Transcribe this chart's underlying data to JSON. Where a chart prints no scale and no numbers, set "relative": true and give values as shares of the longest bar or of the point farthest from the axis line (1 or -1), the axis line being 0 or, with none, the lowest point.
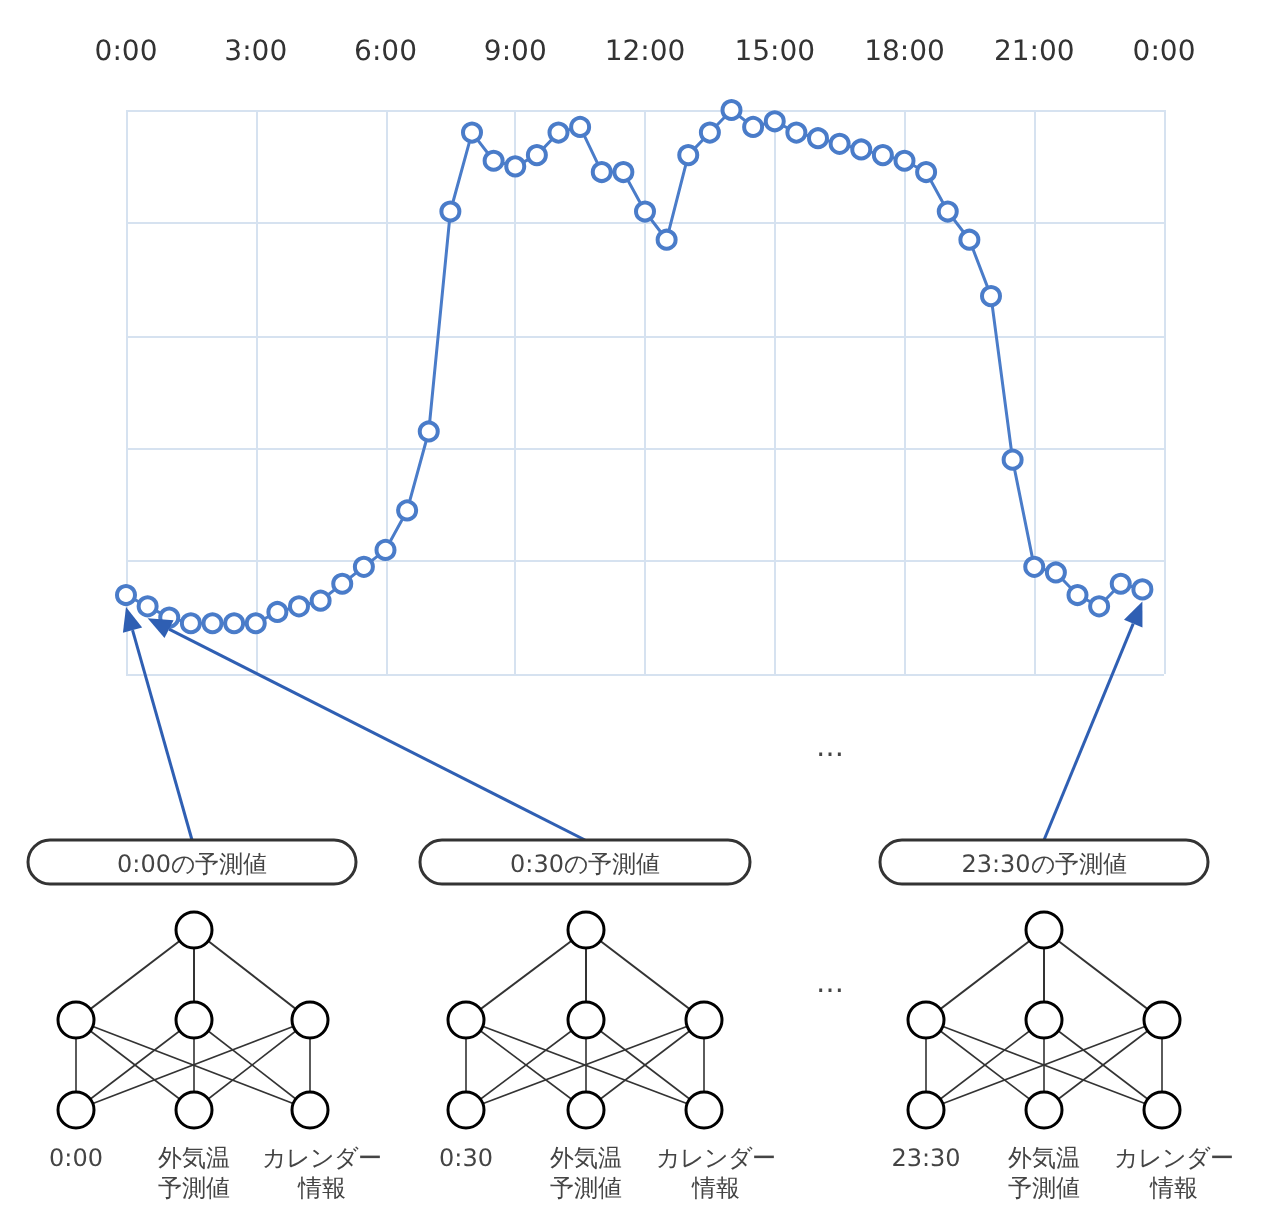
{
  "chart_data": {
    "type": "line",
    "relative": true,
    "x": [
      0,
      0.5,
      1,
      1.5,
      2,
      2.5,
      3,
      3.5,
      4,
      4.5,
      5,
      5.5,
      6,
      6.5,
      7,
      7.5,
      8,
      8.5,
      9,
      9.5,
      10,
      10.5,
      11,
      11.5,
      12,
      12.5,
      13,
      13.5,
      14,
      14.5,
      15,
      15.5,
      16,
      16.5,
      17,
      17.5,
      18,
      18.5,
      19,
      19.5,
      20,
      20.5,
      21,
      21.5,
      22,
      22.5,
      23,
      23.5
    ],
    "xlim": [
      0,
      24
    ],
    "xticks": [
      {
        "value": 0,
        "label": "0:00"
      },
      {
        "value": 3,
        "label": "3:00"
      },
      {
        "value": 6,
        "label": "6:00"
      },
      {
        "value": 9,
        "label": "9:00"
      },
      {
        "value": 12,
        "label": "12:00"
      },
      {
        "value": 15,
        "label": "15:00"
      },
      {
        "value": 18,
        "label": "18:00"
      },
      {
        "value": 21,
        "label": "21:00"
      },
      {
        "value": 24,
        "label": "0:00"
      }
    ],
    "series": [
      {
        "color": "#4a7cc9",
        "values": [
          0.14,
          0.12,
          0.1,
          0.09,
          0.09,
          0.09,
          0.09,
          0.11,
          0.12,
          0.13,
          0.16,
          0.19,
          0.22,
          0.29,
          0.43,
          0.82,
          0.96,
          0.91,
          0.9,
          0.92,
          0.96,
          0.97,
          0.89,
          0.89,
          0.82,
          0.77,
          0.92,
          0.96,
          1,
          0.97,
          0.98,
          0.96,
          0.95,
          0.94,
          0.93,
          0.92,
          0.91,
          0.89,
          0.82,
          0.77,
          0.67,
          0.38,
          0.19,
          0.18,
          0.14,
          0.12,
          0.16,
          0.15
        ]
      }
    ],
    "marker": "circle",
    "line_style": "solid",
    "grid": true,
    "annotations": [
      "0:00の予測値",
      "0:00",
      "外気温",
      "予測値",
      "カレンダー",
      "情報",
      "0:30の予測値",
      "0:30",
      "外気温",
      "予測値",
      "カレンダー",
      "情報",
      "23:30の予測値",
      "23:30",
      "外気温",
      "予測値",
      "カレンダー",
      "情報",
      "…",
      "…"
    ]
  }
}
